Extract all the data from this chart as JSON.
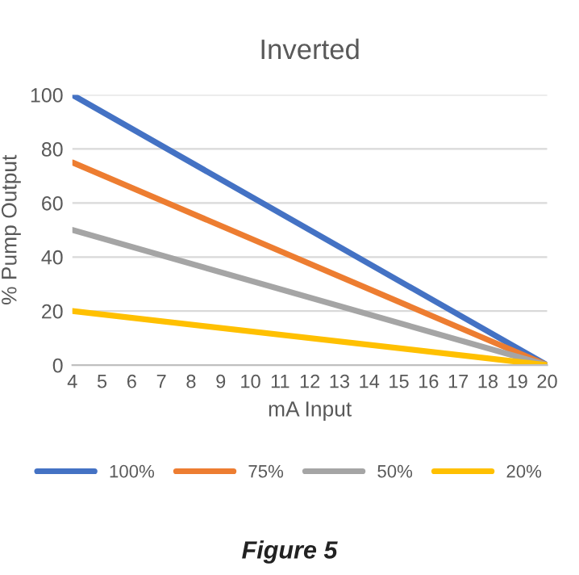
{
  "chart_data": {
    "type": "line",
    "title": "Inverted",
    "xlabel": "mA Input",
    "ylabel": "% Pump Output",
    "x": [
      4,
      20
    ],
    "series": [
      {
        "name": "100%",
        "color": "#4472c4",
        "values": [
          100,
          0
        ]
      },
      {
        "name": "75%",
        "color": "#ed7d31",
        "values": [
          75,
          0
        ]
      },
      {
        "name": "50%",
        "color": "#a5a5a5",
        "values": [
          50,
          0
        ]
      },
      {
        "name": "20%",
        "color": "#ffc000",
        "values": [
          20,
          0
        ]
      }
    ],
    "xlim": [
      4,
      20
    ],
    "xticks": [
      4,
      5,
      6,
      7,
      8,
      9,
      10,
      11,
      12,
      13,
      14,
      15,
      16,
      17,
      18,
      19,
      20
    ],
    "ylim": [
      0,
      100
    ],
    "yticks": [
      0,
      20,
      40,
      60,
      80,
      100
    ],
    "grid": "y",
    "legend": "bottom",
    "marker": "none",
    "line_style": "solid",
    "annotations": [
      "Figure 5"
    ]
  }
}
